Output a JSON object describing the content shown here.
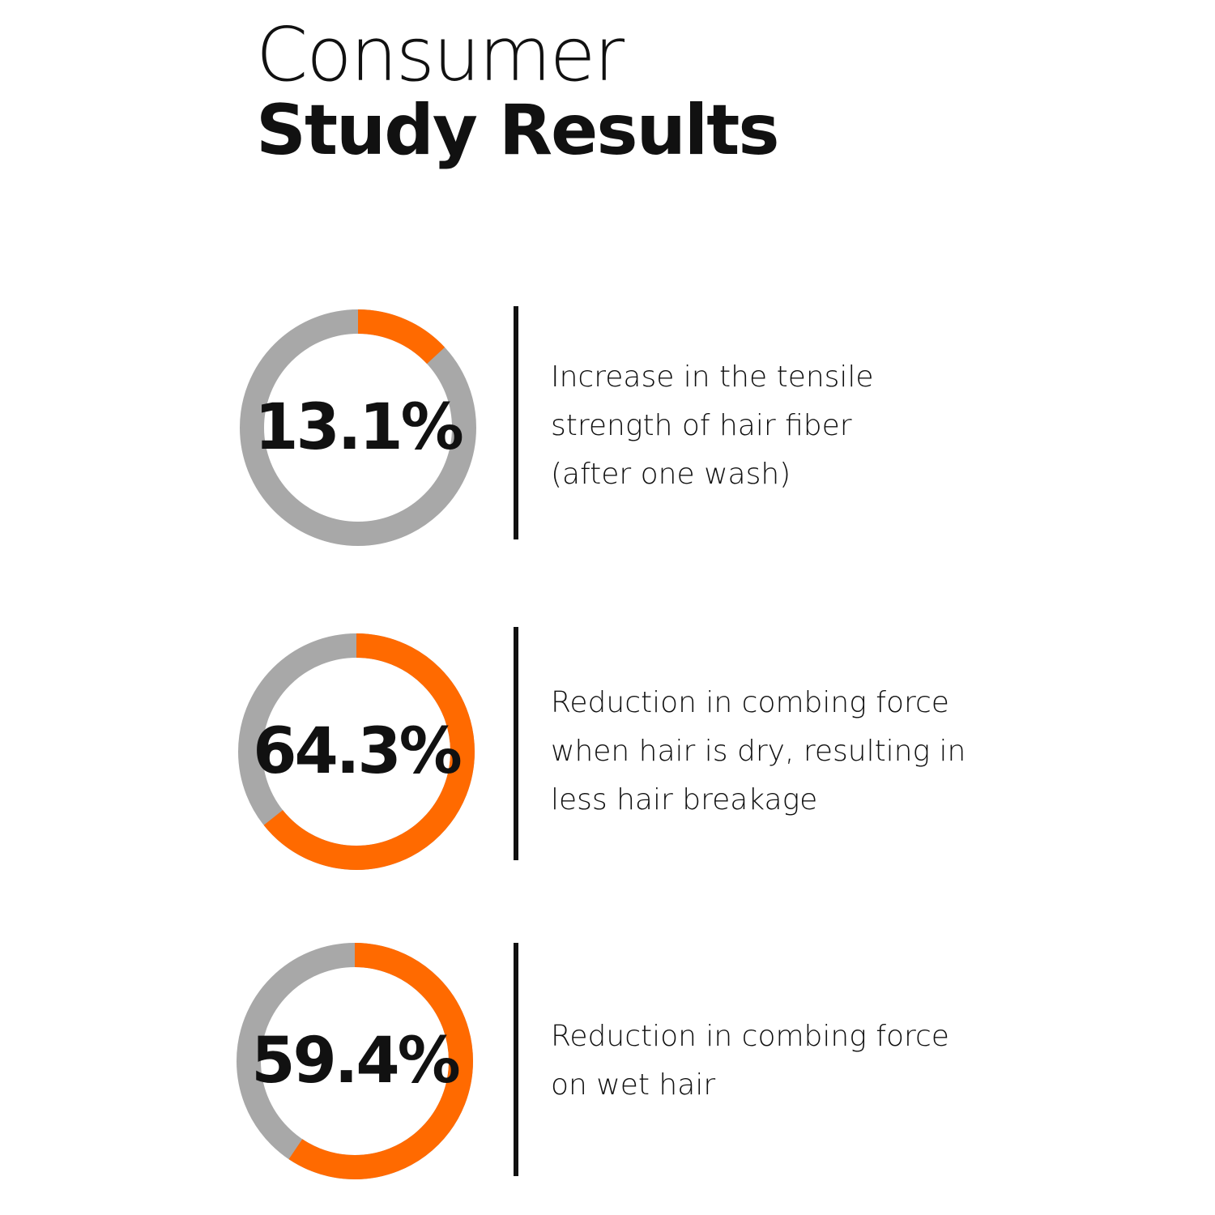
{
  "heading": {
    "line1": "Consumer",
    "line2": "Study Results"
  },
  "colors": {
    "track": "#a8a8a8",
    "accent": "#ff6a00",
    "text": "#111111"
  },
  "chart_data": {
    "type": "donut",
    "unit": "%",
    "max": 100,
    "items": [
      {
        "label": "13.1%",
        "value": 13.1,
        "description": [
          "Increase in the tensile",
          "strength of hair fiber",
          "(after one wash)"
        ]
      },
      {
        "label": "64.3%",
        "value": 64.3,
        "description": [
          "Reduction in combing force",
          "when hair is dry, resulting in",
          "less hair breakage"
        ]
      },
      {
        "label": "59.4%",
        "value": 59.4,
        "description": [
          "Reduction in combing force",
          "on wet hair"
        ]
      }
    ]
  }
}
